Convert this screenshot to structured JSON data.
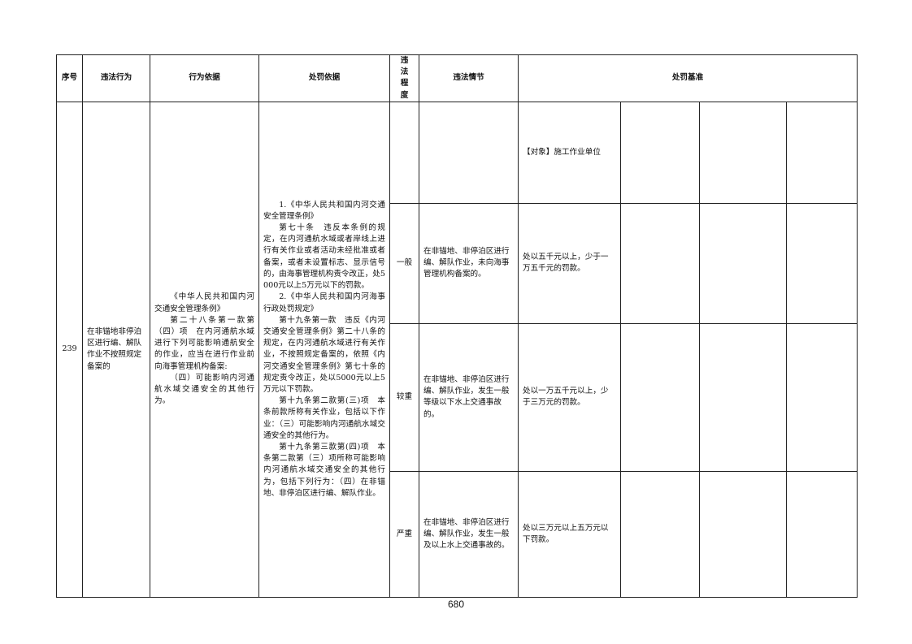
{
  "headers": [
    "序号",
    "违法行为",
    "行为依据",
    "处罚依据",
    "违法程度",
    "违法情节",
    "处罚基准"
  ],
  "row": {
    "number": "239",
    "violation": "在非锚地非停泊区进行编、解队作业不按照规定备案的",
    "behavior_basis": [
      "《中华人民共和国内河交通安全管理条例》",
      "第二十八条第一款第（四）项　在内河通航水域进行下列可能影响通航安全的作业，应当在进行作业前向海事管理机构备案:",
      "（四）可能影响内河通航水域交通安全的其他行为。"
    ],
    "penalty_basis": [
      "1.《中华人民共和国内河交通安全管理条例》",
      "第七十条　违反本条例的规定，在内河通航水域或者岸线上进行有关作业或者活动未经批准或者备案，或者未设置标志、显示信号的，由海事管理机构责令改正，处5000元以上5万元以下的罚款。",
      "2.《中华人民共和国内河海事行政处罚规定》",
      "第十九条第一款　违反《内河交通安全管理条例》第二十八条的规定，在内河通航水域进行有关作业，不按照规定备案的，依照《内河交通安全管理条例》第七十条的规定责令改正，处以5000元以上5万元以下罚款。",
      "第十九条第二款第(三)项　本条前款所称有关作业，包括以下作业：（三）可能影响内河通航水域交通安全的其他行为。",
      "第十九条第三款第(四)项　本条第二款第（三）项所称可能影响内河通航水域交通安全的其他行为，包括下列行为：（四）在非锚地、非停泊区进行编、解队作业。"
    ],
    "object": "【对象】施工作业单位",
    "levels": [
      {
        "degree": "一般",
        "circumstance": "在非锚地、非停泊区进行编、解队作业，未向海事管理机构备案的。",
        "standard": "处以五千元以上，少于一万五千元的罚款。"
      },
      {
        "degree": "较重",
        "circumstance": "在非锚地、非停泊区进行编、解队作业，发生一般等级以下水上交通事故的。",
        "standard": "处以一万五千元以上，少于三万元的罚款。"
      },
      {
        "degree": "严重",
        "circumstance": "在非锚地、非停泊区进行编、解队作业，发生一般及以上水上交通事故的。",
        "standard": "处以三万元以上五万元以下罚款。"
      }
    ]
  },
  "page_number": "680"
}
